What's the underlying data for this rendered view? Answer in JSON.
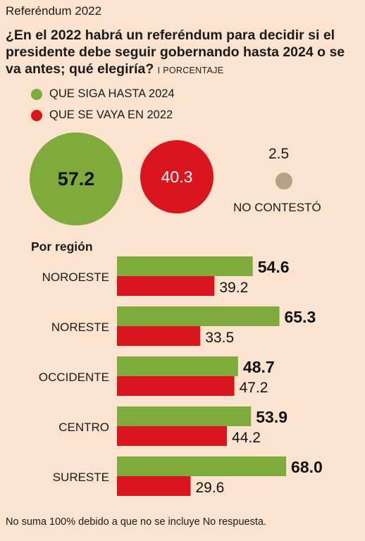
{
  "kicker": "Referéndum 2022",
  "question": "¿En el 2022 habrá un referéndum para decidir si el presidente debe seguir gobernando hasta 2024 o se va antes; qué elegiría?",
  "unit_label": "I PORCENTAJE",
  "legend": [
    {
      "label": "QUE SIGA HASTA 2024",
      "color": "#7fab3c"
    },
    {
      "label": "QUE SE VAYA EN 2022",
      "color": "#d9151e"
    }
  ],
  "national": {
    "siga": "57.2",
    "vaya": "40.3",
    "no_contesto_value": "2.5",
    "no_contesto_label": "NO CONTESTÓ"
  },
  "region_title": "Por región",
  "footnote": "No suma 100% debido a que no se incluye No respuesta.",
  "chart_data": {
    "type": "bar",
    "orientation": "horizontal",
    "categories": [
      "NOROESTE",
      "NORESTE",
      "OCCIDENTE",
      "CENTRO",
      "SURESTE"
    ],
    "series": [
      {
        "name": "QUE SIGA HASTA 2024",
        "color": "#7fab3c",
        "values": [
          54.6,
          65.3,
          48.7,
          53.9,
          68.0
        ]
      },
      {
        "name": "QUE SE VAYA EN 2022",
        "color": "#d9151e",
        "values": [
          39.2,
          33.5,
          47.2,
          44.2,
          29.6
        ]
      }
    ]
  }
}
